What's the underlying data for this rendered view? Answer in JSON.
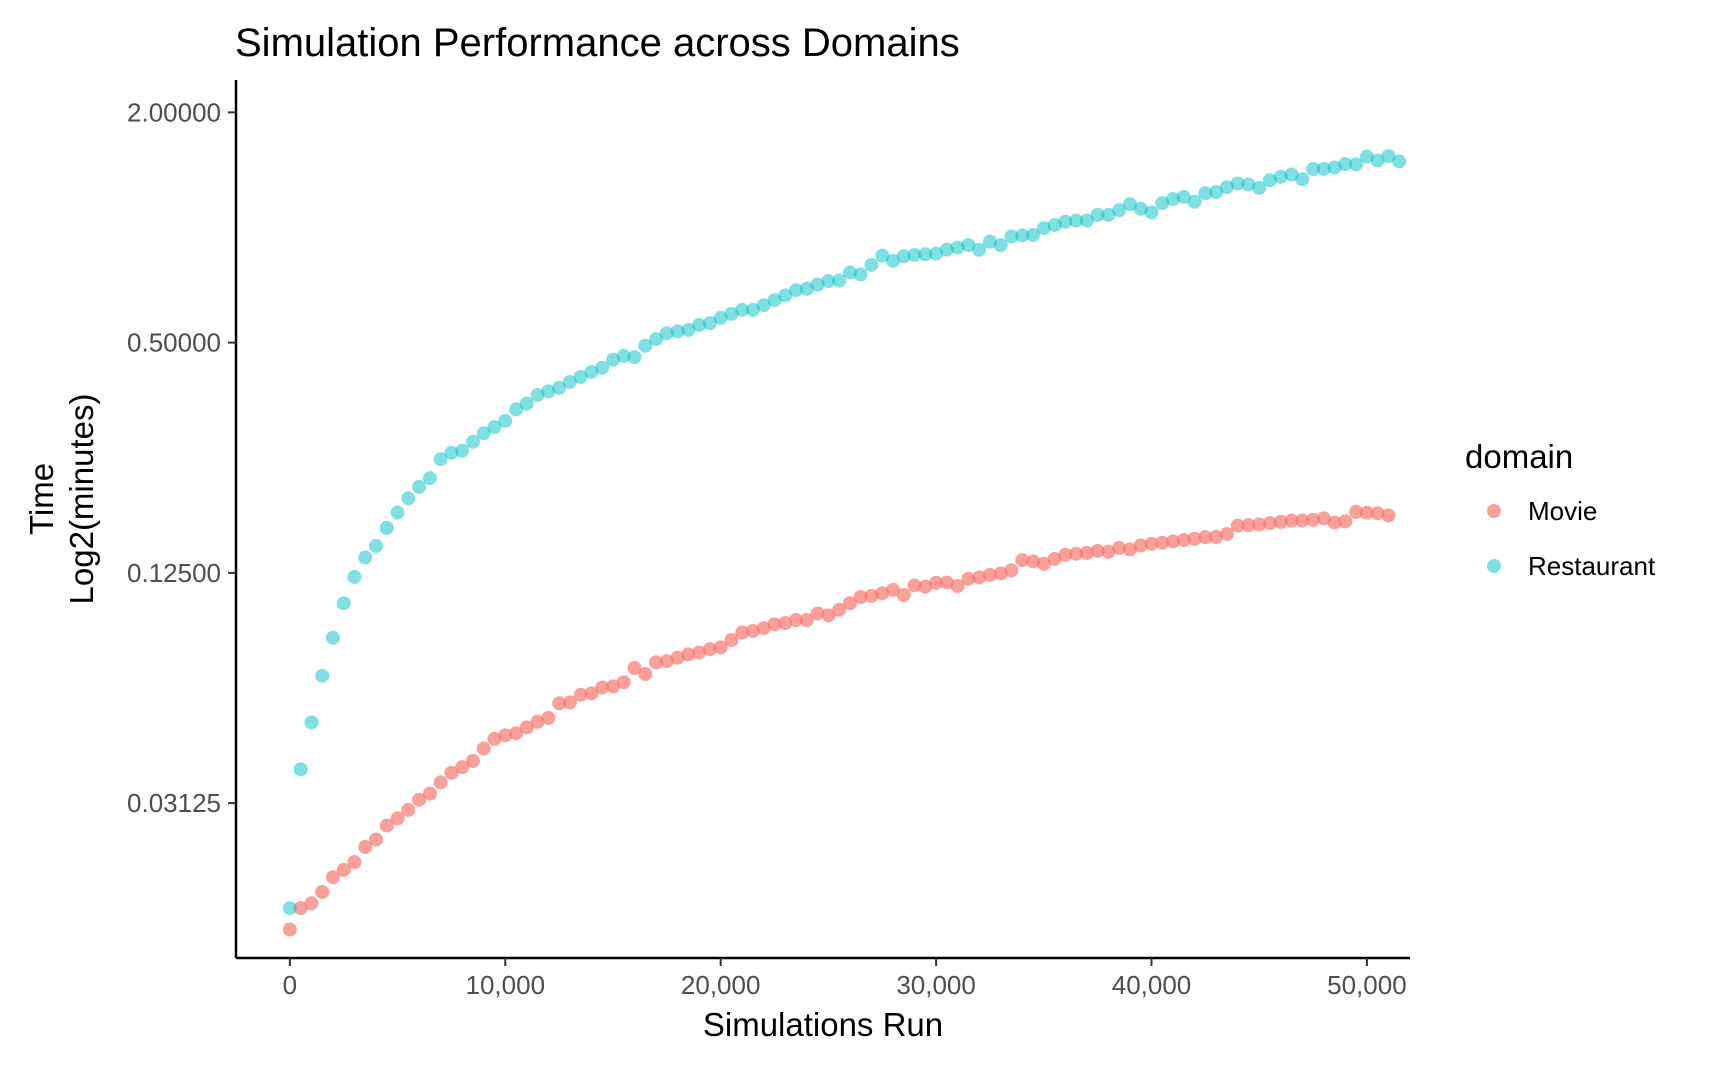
{
  "chart_data": {
    "type": "scatter",
    "title": "Simulation Performance across Domains",
    "xlabel": "Simulations Run",
    "ylabel_lines": [
      "Time",
      "Log2(minutes)"
    ],
    "y_scale": "log2",
    "xlim": [
      -2500,
      52000
    ],
    "ylim": [
      0.0123,
      2.43
    ],
    "x_ticks": [
      0,
      10000,
      20000,
      30000,
      40000,
      50000
    ],
    "x_tick_labels": [
      "0",
      "10,000",
      "20,000",
      "30,000",
      "40,000",
      "50,000"
    ],
    "y_ticks": [
      0.03125,
      0.125,
      0.5,
      2.0
    ],
    "y_tick_labels": [
      "0.03125",
      "0.12500",
      "0.50000",
      "2.00000"
    ],
    "grid": false,
    "legend": {
      "title": "domain",
      "position": "right",
      "entries": [
        "Movie",
        "Restaurant"
      ]
    },
    "series": [
      {
        "name": "Movie",
        "color": "#F8766D",
        "x_start": 0,
        "x_step": 500,
        "values": [
          0.0146,
          0.0166,
          0.0171,
          0.0183,
          0.02,
          0.0209,
          0.0219,
          0.024,
          0.0251,
          0.0273,
          0.0285,
          0.03,
          0.0319,
          0.0331,
          0.0354,
          0.0375,
          0.0388,
          0.0403,
          0.0434,
          0.046,
          0.047,
          0.0476,
          0.0493,
          0.051,
          0.0522,
          0.057,
          0.0573,
          0.06,
          0.0605,
          0.0627,
          0.0631,
          0.0647,
          0.0705,
          0.068,
          0.0729,
          0.0735,
          0.075,
          0.0765,
          0.0774,
          0.0789,
          0.0798,
          0.0834,
          0.0873,
          0.0881,
          0.0896,
          0.0917,
          0.0924,
          0.0941,
          0.0941,
          0.0979,
          0.0968,
          0.1001,
          0.1041,
          0.1081,
          0.1088,
          0.1105,
          0.1128,
          0.1094,
          0.1159,
          0.115,
          0.1177,
          0.118,
          0.1155,
          0.1206,
          0.1216,
          0.1235,
          0.1245,
          0.1269,
          0.135,
          0.134,
          0.132,
          0.1359,
          0.1393,
          0.1403,
          0.1409,
          0.1426,
          0.1419,
          0.1453,
          0.144,
          0.1474,
          0.1489,
          0.1499,
          0.151,
          0.1523,
          0.1535,
          0.155,
          0.1552,
          0.158,
          0.1661,
          0.1666,
          0.1673,
          0.1687,
          0.1699,
          0.1712,
          0.1712,
          0.172,
          0.1735,
          0.1692,
          0.1704,
          0.1804,
          0.1795,
          0.179,
          0.1765
        ]
      },
      {
        "name": "Restaurant",
        "color": "#00BFC4",
        "x_start": 0,
        "x_step": 500,
        "values": [
          0.0166,
          0.0383,
          0.0508,
          0.0673,
          0.0846,
          0.1041,
          0.122,
          0.1371,
          0.147,
          0.1639,
          0.1796,
          0.1958,
          0.2097,
          0.2211,
          0.2479,
          0.2576,
          0.2607,
          0.2752,
          0.2896,
          0.3006,
          0.3122,
          0.3344,
          0.3463,
          0.3648,
          0.3728,
          0.381,
          0.3945,
          0.4065,
          0.419,
          0.4299,
          0.4509,
          0.4615,
          0.458,
          0.4907,
          0.5105,
          0.529,
          0.5349,
          0.5397,
          0.5559,
          0.5621,
          0.5802,
          0.5946,
          0.609,
          0.609,
          0.6262,
          0.6454,
          0.6644,
          0.686,
          0.6913,
          0.7094,
          0.7238,
          0.7267,
          0.7627,
          0.7532,
          0.7979,
          0.8441,
          0.8184,
          0.8407,
          0.8474,
          0.8509,
          0.8543,
          0.8749,
          0.8855,
          0.8997,
          0.8745,
          0.9182,
          0.8997,
          0.9471,
          0.9531,
          0.9559,
          0.9959,
          1.0152,
          1.0353,
          1.0424,
          1.0424,
          1.0784,
          1.0791,
          1.1098,
          1.1509,
          1.1187,
          1.0955,
          1.1577,
          1.1872,
          1.202,
          1.1671,
          1.2286,
          1.2379,
          1.2744,
          1.3032,
          1.2957,
          1.2695,
          1.3292,
          1.3566,
          1.3748,
          1.338,
          1.4205,
          1.4225,
          1.4347,
          1.4652,
          1.4616,
          1.532,
          1.4969,
          1.5367,
          1.4886
        ]
      }
    ]
  }
}
